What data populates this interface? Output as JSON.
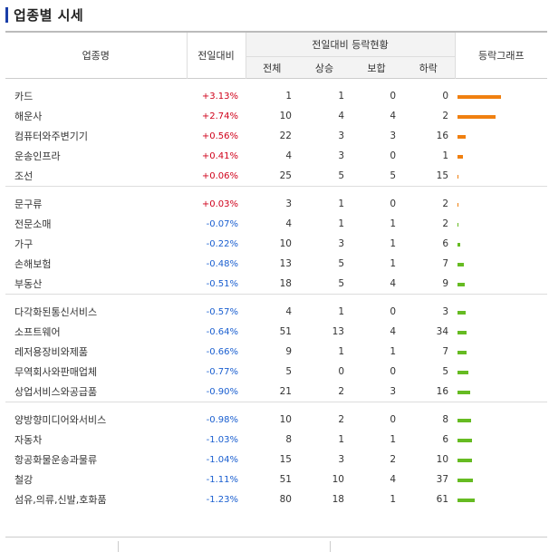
{
  "title": "업종별 시세",
  "headers": {
    "name": "업종명",
    "change": "전일대비",
    "status_group": "전일대비 등락현황",
    "total": "전체",
    "rise": "상승",
    "flat": "보합",
    "fall": "하락",
    "graph": "등락그래프"
  },
  "colors": {
    "up": "#d0021b",
    "down": "#1a5fd0",
    "bar_orange": "#f08010",
    "bar_green": "#66bb22"
  },
  "groups": [
    [
      {
        "name": "카드",
        "change": "+3.13%",
        "dir": "up",
        "total": "1",
        "rise": "1",
        "flat": "0",
        "fall": "0",
        "bar_color": "orange",
        "bar_pct": 3.13
      },
      {
        "name": "해운사",
        "change": "+2.74%",
        "dir": "up",
        "total": "10",
        "rise": "4",
        "flat": "4",
        "fall": "2",
        "bar_color": "orange",
        "bar_pct": 2.74
      },
      {
        "name": "컴퓨터와주변기기",
        "change": "+0.56%",
        "dir": "up",
        "total": "22",
        "rise": "3",
        "flat": "3",
        "fall": "16",
        "bar_color": "orange",
        "bar_pct": 0.56
      },
      {
        "name": "운송인프라",
        "change": "+0.41%",
        "dir": "up",
        "total": "4",
        "rise": "3",
        "flat": "0",
        "fall": "1",
        "bar_color": "orange",
        "bar_pct": 0.41
      },
      {
        "name": "조선",
        "change": "+0.06%",
        "dir": "up",
        "total": "25",
        "rise": "5",
        "flat": "5",
        "fall": "15",
        "bar_color": "orange",
        "bar_pct": 0.06
      }
    ],
    [
      {
        "name": "문구류",
        "change": "+0.03%",
        "dir": "up",
        "total": "3",
        "rise": "1",
        "flat": "0",
        "fall": "2",
        "bar_color": "orange",
        "bar_pct": 0.03
      },
      {
        "name": "전문소매",
        "change": "-0.07%",
        "dir": "down",
        "total": "4",
        "rise": "1",
        "flat": "1",
        "fall": "2",
        "bar_color": "green",
        "bar_pct": 0.07
      },
      {
        "name": "가구",
        "change": "-0.22%",
        "dir": "down",
        "total": "10",
        "rise": "3",
        "flat": "1",
        "fall": "6",
        "bar_color": "green",
        "bar_pct": 0.22
      },
      {
        "name": "손해보험",
        "change": "-0.48%",
        "dir": "down",
        "total": "13",
        "rise": "5",
        "flat": "1",
        "fall": "7",
        "bar_color": "green",
        "bar_pct": 0.48
      },
      {
        "name": "부동산",
        "change": "-0.51%",
        "dir": "down",
        "total": "18",
        "rise": "5",
        "flat": "4",
        "fall": "9",
        "bar_color": "green",
        "bar_pct": 0.51
      }
    ],
    [
      {
        "name": "다각화된통신서비스",
        "change": "-0.57%",
        "dir": "down",
        "total": "4",
        "rise": "1",
        "flat": "0",
        "fall": "3",
        "bar_color": "green",
        "bar_pct": 0.57
      },
      {
        "name": "소프트웨어",
        "change": "-0.64%",
        "dir": "down",
        "total": "51",
        "rise": "13",
        "flat": "4",
        "fall": "34",
        "bar_color": "green",
        "bar_pct": 0.64
      },
      {
        "name": "레저용장비와제품",
        "change": "-0.66%",
        "dir": "down",
        "total": "9",
        "rise": "1",
        "flat": "1",
        "fall": "7",
        "bar_color": "green",
        "bar_pct": 0.66
      },
      {
        "name": "무역회사와판매업체",
        "change": "-0.77%",
        "dir": "down",
        "total": "5",
        "rise": "0",
        "flat": "0",
        "fall": "5",
        "bar_color": "green",
        "bar_pct": 0.77
      },
      {
        "name": "상업서비스와공급품",
        "change": "-0.90%",
        "dir": "down",
        "total": "21",
        "rise": "2",
        "flat": "3",
        "fall": "16",
        "bar_color": "green",
        "bar_pct": 0.9
      }
    ],
    [
      {
        "name": "양방향미디어와서비스",
        "change": "-0.98%",
        "dir": "down",
        "total": "10",
        "rise": "2",
        "flat": "0",
        "fall": "8",
        "bar_color": "green",
        "bar_pct": 0.98
      },
      {
        "name": "자동차",
        "change": "-1.03%",
        "dir": "down",
        "total": "8",
        "rise": "1",
        "flat": "1",
        "fall": "6",
        "bar_color": "green",
        "bar_pct": 1.03
      },
      {
        "name": "항공화물운송과물류",
        "change": "-1.04%",
        "dir": "down",
        "total": "15",
        "rise": "3",
        "flat": "2",
        "fall": "10",
        "bar_color": "green",
        "bar_pct": 1.04
      },
      {
        "name": "철강",
        "change": "-1.11%",
        "dir": "down",
        "total": "51",
        "rise": "10",
        "flat": "4",
        "fall": "37",
        "bar_color": "green",
        "bar_pct": 1.11
      },
      {
        "name": "섬유,의류,신발,호화품",
        "change": "-1.23%",
        "dir": "down",
        "total": "80",
        "rise": "18",
        "flat": "1",
        "fall": "61",
        "bar_color": "green",
        "bar_pct": 1.23
      }
    ]
  ]
}
